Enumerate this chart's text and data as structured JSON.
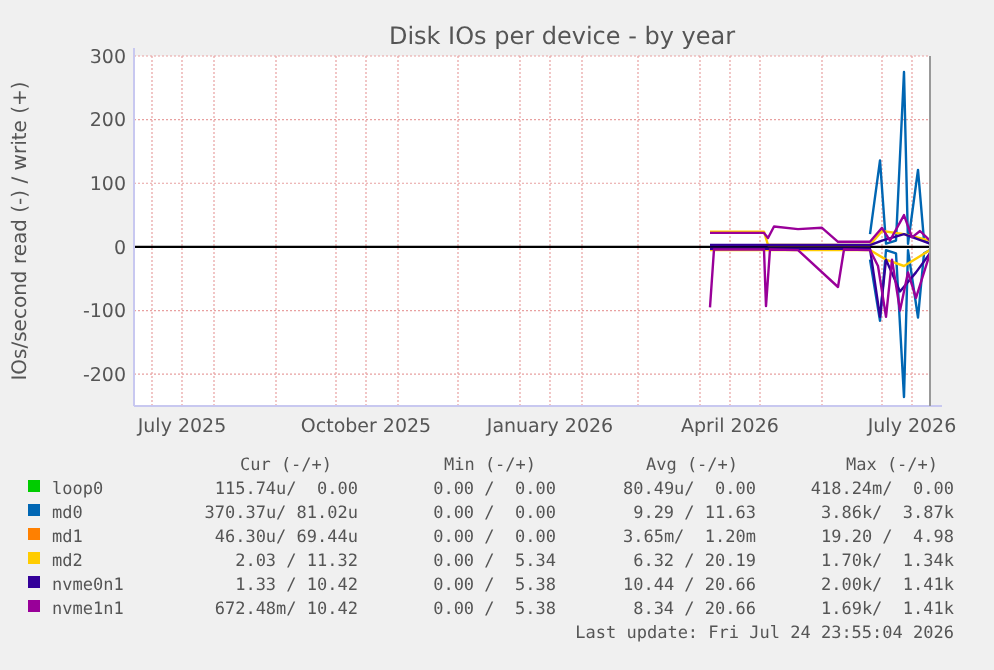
{
  "chart_data": {
    "type": "line",
    "title": "Disk IOs per device - by year",
    "ylabel": "IOs/second read (-) / write (+)",
    "xlim": [
      "2025-06-22",
      "2026-07-25"
    ],
    "xticks": [
      {
        "value": "2025-07-01",
        "label": null
      },
      {
        "value": "2025-07-16",
        "label": "July 2025"
      },
      {
        "value": "2025-08-01",
        "label": null
      },
      {
        "value": "2025-09-01",
        "label": null
      },
      {
        "value": "2025-10-01",
        "label": null
      },
      {
        "value": "2025-10-16",
        "label": "October 2025"
      },
      {
        "value": "2025-11-01",
        "label": null
      },
      {
        "value": "2025-12-01",
        "label": null
      },
      {
        "value": "2026-01-01",
        "label": null
      },
      {
        "value": "2026-01-16",
        "label": "January 2026"
      },
      {
        "value": "2026-02-01",
        "label": null
      },
      {
        "value": "2026-03-01",
        "label": null
      },
      {
        "value": "2026-04-01",
        "label": null
      },
      {
        "value": "2026-04-16",
        "label": "April 2026"
      },
      {
        "value": "2026-05-01",
        "label": null
      },
      {
        "value": "2026-06-01",
        "label": null
      },
      {
        "value": "2026-07-01",
        "label": null
      },
      {
        "value": "2026-07-16",
        "label": "July 2026"
      }
    ],
    "ylim": [
      -250,
      300
    ],
    "yticks": [
      -200,
      -100,
      0,
      100,
      200,
      300
    ],
    "grid": true,
    "legend": "bottom",
    "ref_lines": [
      {
        "axis": "y",
        "value": 0,
        "color": "#000000"
      }
    ],
    "series": [
      {
        "name": "loop0",
        "color": "#00cc00"
      },
      {
        "name": "md0",
        "color": "#0066b3",
        "x": [
          "2026-06-25",
          "2026-06-30",
          "2026-07-03",
          "2026-07-08",
          "2026-07-12",
          "2026-07-14",
          "2026-07-19",
          "2026-07-22",
          "2026-07-25"
        ],
        "values": [
          20,
          136,
          5,
          10,
          275,
          5,
          121,
          10,
          5
        ]
      },
      {
        "color": "#0066b3",
        "x": [
          "2026-06-25",
          "2026-06-30",
          "2026-07-03",
          "2026-07-08",
          "2026-07-12",
          "2026-07-14",
          "2026-07-19",
          "2026-07-22",
          "2026-07-25"
        ],
        "values": [
          -20,
          -116,
          -5,
          -10,
          -236,
          -5,
          -111,
          -10,
          -5
        ]
      },
      {
        "name": "md1",
        "color": "#ff8000"
      },
      {
        "name": "md2",
        "color": "#ffcc00",
        "x": [
          "2026-04-06",
          "2026-05-03",
          "2026-05-05",
          "2026-06-25",
          "2026-07-01",
          "2026-07-12",
          "2026-07-25"
        ],
        "values": [
          24,
          24,
          3,
          3,
          25,
          20,
          10
        ]
      },
      {
        "color": "#ffcc00",
        "x": [
          "2026-04-06",
          "2026-05-03",
          "2026-06-25",
          "2026-07-03",
          "2026-07-12",
          "2026-07-25"
        ],
        "values": [
          -5,
          -5,
          -5,
          -20,
          -30,
          -5
        ]
      },
      {
        "name": "nvme0n1",
        "color": "#330099",
        "x": [
          "2026-04-06",
          "2026-06-25",
          "2026-07-01",
          "2026-07-12",
          "2026-07-25"
        ],
        "values": [
          3,
          3,
          10,
          20,
          5
        ]
      },
      {
        "color": "#330099",
        "x": [
          "2026-04-06",
          "2026-06-25",
          "2026-06-30",
          "2026-07-03",
          "2026-07-10",
          "2026-07-18",
          "2026-07-25"
        ],
        "values": [
          -3,
          -3,
          -110,
          -20,
          -70,
          -40,
          -10
        ]
      },
      {
        "name": "nvme1n1",
        "color": "#990099",
        "x": [
          "2026-04-06",
          "2026-05-03",
          "2026-05-05",
          "2026-05-08",
          "2026-05-20",
          "2026-06-01",
          "2026-06-09",
          "2026-06-25",
          "2026-07-01",
          "2026-07-05",
          "2026-07-12",
          "2026-07-16",
          "2026-07-20",
          "2026-07-25"
        ],
        "values": [
          22,
          22,
          14,
          32,
          28,
          30,
          8,
          8,
          30,
          10,
          50,
          15,
          25,
          10
        ]
      },
      {
        "color": "#990099",
        "x": [
          "2026-04-06",
          "2026-04-08",
          "2026-05-03",
          "2026-05-04",
          "2026-05-06",
          "2026-05-20",
          "2026-06-09",
          "2026-06-12",
          "2026-06-25",
          "2026-06-29",
          "2026-07-03",
          "2026-07-06",
          "2026-07-10",
          "2026-07-14",
          "2026-07-18",
          "2026-07-25"
        ],
        "values": [
          -95,
          -4,
          -4,
          -93,
          -4,
          -5,
          -63,
          -4,
          -5,
          -30,
          -110,
          -20,
          -100,
          -40,
          -80,
          -10
        ]
      }
    ],
    "annotations": [
      "Cur (-/+)",
      "Min (-/+)",
      "Avg (-/+)",
      "Max (-/+)",
      "115.74u/  0.00",
      "0.00 /  0.00",
      "80.49u/  0.00",
      "418.24m/  0.00",
      "370.37u/ 81.02u",
      "0.00 /  0.00",
      "9.29 / 11.63",
      "3.86k/  3.87k",
      "46.30u/ 69.44u",
      "0.00 /  0.00",
      "3.65m/  1.20m",
      "19.20 /  4.98",
      "2.03 / 11.32",
      "0.00 /  5.34",
      "6.32 / 20.19",
      "1.70k/  1.34k",
      "1.33 / 10.42",
      "0.00 /  5.38",
      "10.44 / 20.66",
      "2.00k/  1.41k",
      "672.48m/ 10.42",
      "0.00 /  5.38",
      "8.34 / 20.66",
      "1.69k/  1.41k",
      "Last update: Fri Jul 24 23:55:04 2026"
    ]
  }
}
